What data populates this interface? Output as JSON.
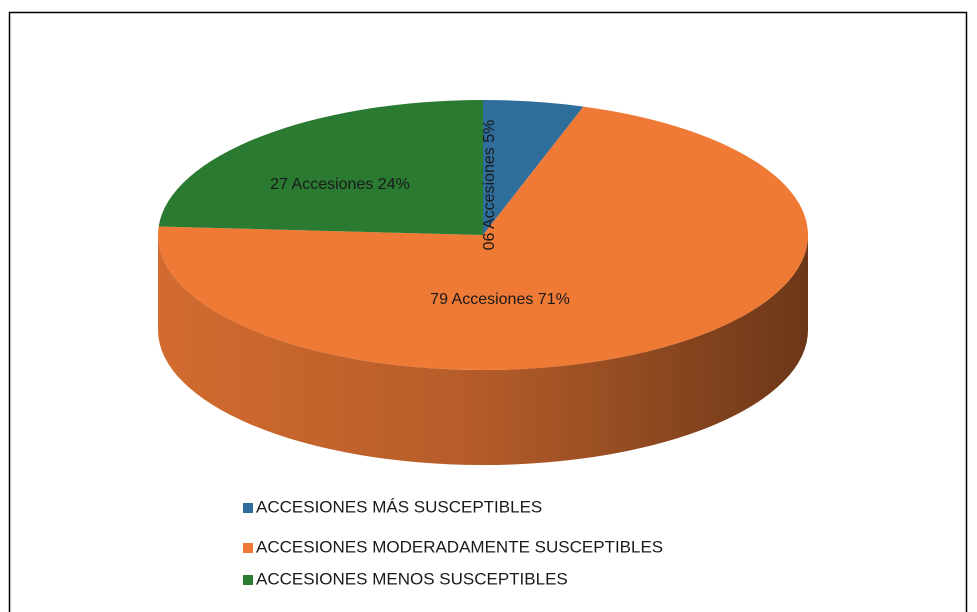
{
  "chart_data": {
    "type": "pie",
    "three_d": true,
    "categories": [
      "ACCESIONES MÁS SUSCEPTIBLES",
      "ACCESIONES MODERADAMENTE SUSCEPTIBLES",
      "ACCESIONES MENOS SUSCEPTIBLES"
    ],
    "values": [
      5,
      71,
      24
    ],
    "value_labels": [
      "06 Accesiones 5%",
      "79 Accesiones 71%",
      "27 Accesiones 24%"
    ],
    "colors": [
      "#2f6d9b",
      "#ef7a36",
      "#2a7a31"
    ],
    "legend": "bottom"
  }
}
